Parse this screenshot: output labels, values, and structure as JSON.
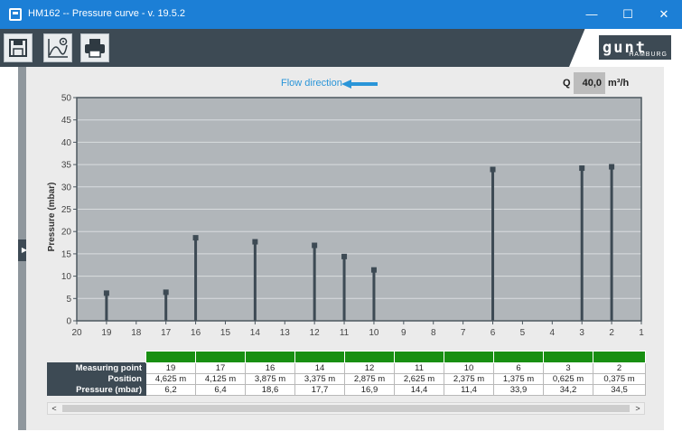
{
  "window": {
    "title": "HM162 -- Pressure curve - v. 19.5.2",
    "minimize": "—",
    "maximize": "☐",
    "close": "✕"
  },
  "toolbar": {
    "icons": [
      "save-icon",
      "chart-settings-icon",
      "print-icon"
    ]
  },
  "logo": {
    "wordmark": "gunt",
    "subtitle": "HAMBURG"
  },
  "flow": {
    "label": "Flow direction"
  },
  "flow_q": {
    "label": "Q",
    "value": "40,0",
    "unit": "m³/h"
  },
  "chart_data": {
    "type": "bar",
    "ylabel": "Pressure  (mbar)",
    "ylim": [
      0,
      50
    ],
    "yticks": [
      0,
      5,
      10,
      15,
      20,
      25,
      30,
      35,
      40,
      45,
      50
    ],
    "xlim": [
      20,
      1
    ],
    "xticks": [
      20,
      19,
      18,
      17,
      16,
      15,
      14,
      13,
      12,
      11,
      10,
      9,
      8,
      7,
      6,
      5,
      4,
      3,
      2,
      1
    ],
    "x": [
      19,
      17,
      16,
      14,
      12,
      11,
      10,
      6,
      3,
      2
    ],
    "values": [
      6.2,
      6.4,
      18.6,
      17.7,
      16.9,
      14.4,
      11.4,
      33.9,
      34.2,
      34.5
    ],
    "grid": true,
    "colors": {
      "plot_bg": "#b1b6ba",
      "bar": "#3d4a54",
      "grid": "#d9dcdf"
    }
  },
  "table": {
    "row_labels": [
      "Measuring point",
      "Position",
      "Pressure  (mbar)"
    ],
    "columns": [
      {
        "point": "19",
        "position": "4,625 m",
        "pressure": "6,2"
      },
      {
        "point": "17",
        "position": "4,125 m",
        "pressure": "6,4"
      },
      {
        "point": "16",
        "position": "3,875 m",
        "pressure": "18,6"
      },
      {
        "point": "14",
        "position": "3,375 m",
        "pressure": "17,7"
      },
      {
        "point": "12",
        "position": "2,875 m",
        "pressure": "16,9"
      },
      {
        "point": "11",
        "position": "2,625 m",
        "pressure": "14,4"
      },
      {
        "point": "10",
        "position": "2,375 m",
        "pressure": "11,4"
      },
      {
        "point": "6",
        "position": "1,375 m",
        "pressure": "33,9"
      },
      {
        "point": "3",
        "position": "0,625 m",
        "pressure": "34,2"
      },
      {
        "point": "2",
        "position": "0,375 m",
        "pressure": "34,5"
      }
    ]
  },
  "scroll": {
    "left": "<",
    "right": ">"
  }
}
